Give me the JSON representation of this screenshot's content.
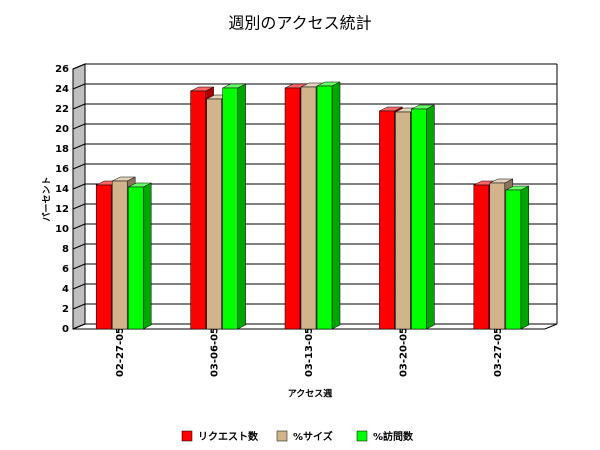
{
  "chart_data": {
    "type": "bar3d",
    "title": "週別のアクセス統計",
    "x_label": "アクセス週",
    "y_label": "パーセント",
    "categories": [
      "02-27-05",
      "03-06-05",
      "03-13-05",
      "03-20-05",
      "03-27-05"
    ],
    "series": [
      {
        "name": "リクエスト数",
        "color": "#ff0000",
        "values": [
          14.4,
          23.8,
          24.1,
          21.8,
          14.4
        ]
      },
      {
        "name": "%サイズ",
        "color": "#d2b48c",
        "values": [
          14.8,
          23.0,
          24.2,
          21.7,
          14.6
        ]
      },
      {
        "name": "%訪問数",
        "color": "#00ff00",
        "values": [
          14.2,
          24.1,
          24.3,
          22.0,
          13.9
        ]
      }
    ],
    "ylim": [
      0,
      26
    ],
    "yticks": [
      0,
      2,
      4,
      6,
      8,
      10,
      12,
      14,
      16,
      18,
      20,
      22,
      24,
      26
    ],
    "grid": true
  }
}
